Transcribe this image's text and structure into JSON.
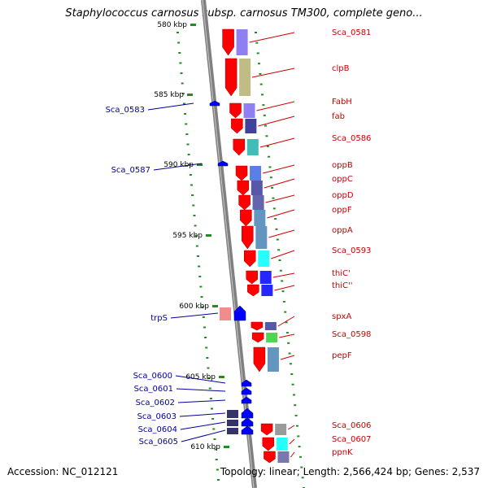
{
  "title": "Staphylococcus carnosus subsp. carnosus TM300, complete geno...",
  "footer": {
    "accession": "Accession: NC_012121",
    "summary": "Topology: linear; Length: 2,566,424 bp; Genes: 2,537"
  },
  "colors": {
    "axis": "#808080",
    "tick": "#228b22",
    "forward_label": "#cc0000",
    "reverse_label": "#000099",
    "gene_red": "#ff0000",
    "gene_blue": "#0000ff"
  },
  "scale_labels": [
    "580 kbp",
    "585 kbp",
    "590 kbp",
    "595 kbp",
    "600 kbp",
    "605 kbp",
    "610 kbp"
  ],
  "forward_genes": [
    "Sca_0581",
    "clpB",
    "FabH",
    "fab",
    "Sca_0586",
    "oppB",
    "oppC",
    "oppD",
    "oppF",
    "oppA",
    "Sca_0593",
    "thiC'",
    "thiC''",
    "spxA",
    "Sca_0598",
    "pepF",
    "Sca_0606",
    "Sca_0607",
    "ppnK"
  ],
  "reverse_genes": [
    "Sca_0583",
    "Sca_0587",
    "trpS",
    "Sca_0600",
    "Sca_0601",
    "Sca_0602",
    "Sca_0603",
    "Sca_0604",
    "Sca_0605"
  ]
}
